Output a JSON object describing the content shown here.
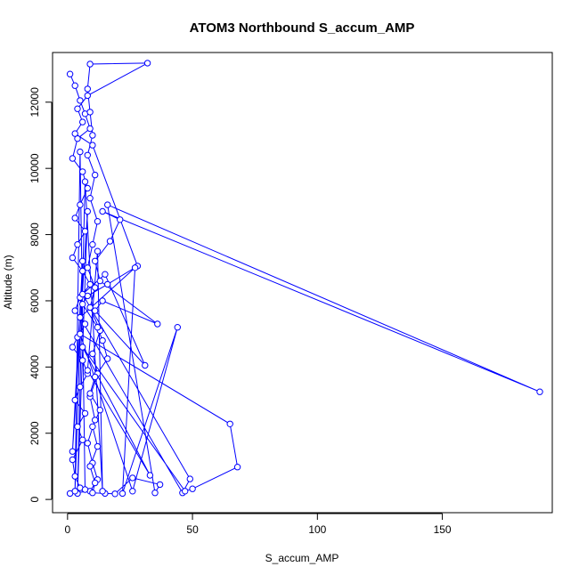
{
  "chart_data": {
    "type": "line",
    "title": "ATOM3 Northbound S_accum_AMP",
    "xlabel": "S_accum_AMP",
    "ylabel": "Altitude (m)",
    "xlim": [
      -6,
      194
    ],
    "ylim": [
      -400,
      13500
    ],
    "xticks": [
      0,
      50,
      100,
      150
    ],
    "yticks": [
      0,
      2000,
      4000,
      6000,
      8000,
      10000,
      12000
    ],
    "grid": false,
    "series_color": "#0000ff",
    "marker": "open-circle",
    "series": [
      {
        "points": [
          [
            1,
            12850
          ],
          [
            3,
            12500
          ],
          [
            5,
            12050
          ],
          [
            7,
            11650
          ],
          [
            9,
            11200
          ],
          [
            4,
            10900
          ],
          [
            2,
            10300
          ],
          [
            6,
            9900
          ],
          [
            8,
            9400
          ],
          [
            5,
            8900
          ],
          [
            3,
            8500
          ],
          [
            7,
            8100
          ],
          [
            4,
            7700
          ],
          [
            2,
            7300
          ],
          [
            6,
            6900
          ],
          [
            9,
            6500
          ],
          [
            5,
            6100
          ],
          [
            3,
            5700
          ],
          [
            7,
            5300
          ],
          [
            4,
            4900
          ],
          [
            2,
            4600
          ],
          [
            6,
            4200
          ],
          [
            8,
            3800
          ],
          [
            5,
            3400
          ],
          [
            3,
            3000
          ],
          [
            7,
            2600
          ],
          [
            4,
            2200
          ],
          [
            6,
            1800
          ],
          [
            2,
            1200
          ],
          [
            3,
            700
          ],
          [
            5,
            350
          ],
          [
            1,
            180
          ],
          [
            9,
            250
          ],
          [
            12,
            600
          ],
          [
            10,
            1100
          ],
          [
            8,
            1700
          ],
          [
            11,
            2400
          ],
          [
            9,
            3100
          ],
          [
            12,
            3800
          ],
          [
            10,
            4400
          ],
          [
            13,
            5100
          ],
          [
            9,
            5800
          ],
          [
            11,
            6400
          ],
          [
            8,
            7000
          ],
          [
            10,
            7700
          ],
          [
            12,
            8400
          ],
          [
            9,
            9100
          ],
          [
            11,
            9800
          ],
          [
            8,
            10400
          ],
          [
            10,
            11000
          ],
          [
            9,
            11700
          ],
          [
            8,
            12400
          ],
          [
            9,
            13150
          ],
          [
            32,
            13180
          ],
          [
            8,
            12200
          ],
          [
            4,
            11800
          ],
          [
            6,
            11400
          ],
          [
            3,
            11050
          ],
          [
            10,
            10700
          ],
          [
            28,
            7050
          ],
          [
            16,
            6500
          ],
          [
            8,
            6150
          ],
          [
            6,
            5900
          ],
          [
            12,
            5200
          ],
          [
            14,
            4800
          ],
          [
            16,
            4250
          ],
          [
            11,
            3700
          ],
          [
            9,
            3200
          ],
          [
            13,
            2700
          ],
          [
            10,
            2200
          ],
          [
            12,
            1600
          ],
          [
            9,
            1000
          ],
          [
            11,
            500
          ],
          [
            10,
            200
          ],
          [
            15,
            180
          ],
          [
            19,
            170
          ],
          [
            26,
            650
          ],
          [
            37,
            450
          ],
          [
            35,
            200
          ],
          [
            16,
            8900
          ],
          [
            189,
            3250
          ],
          [
            14,
            8700
          ],
          [
            21,
            8450
          ],
          [
            17,
            7800
          ],
          [
            11,
            7200
          ],
          [
            13,
            6600
          ],
          [
            36,
            5300
          ],
          [
            14,
            6000
          ],
          [
            11,
            5700
          ],
          [
            31,
            4050
          ],
          [
            15,
            6800
          ],
          [
            6,
            6200
          ],
          [
            49,
            620
          ],
          [
            46,
            200
          ],
          [
            5,
            5500
          ],
          [
            27,
            7000
          ],
          [
            22,
            180
          ],
          [
            44,
            5200
          ],
          [
            26,
            250
          ],
          [
            5,
            5000
          ],
          [
            65,
            2280
          ],
          [
            68,
            980
          ],
          [
            50,
            320
          ],
          [
            47,
            250
          ],
          [
            6,
            4600
          ],
          [
            33,
            730
          ],
          [
            8,
            3900
          ],
          [
            12,
            7500
          ],
          [
            14,
            250
          ],
          [
            7,
            9600
          ],
          [
            4,
            180
          ],
          [
            8,
            8700
          ],
          [
            2,
            1450
          ],
          [
            6,
            7200
          ],
          [
            3,
            250
          ],
          [
            5,
            10500
          ],
          [
            7,
            300
          ]
        ]
      }
    ]
  }
}
